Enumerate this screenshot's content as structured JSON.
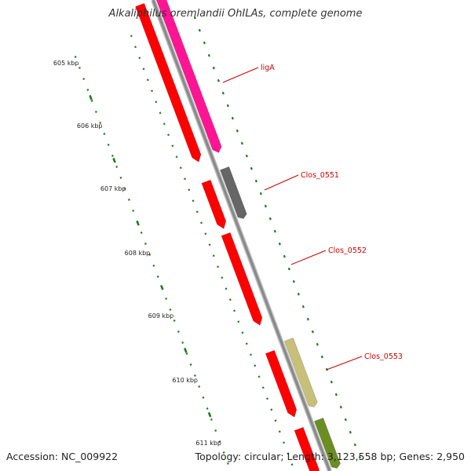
{
  "title": "Alkaliphilus oremlandii OhILAs, complete genome",
  "accession": "Accession: NC_009922",
  "summary": "Topology: circular; Length: 3,123,558 bp; Genes: 2,950",
  "colors": {
    "backbone": "#888888",
    "cds": "#ff0000",
    "pink": "#ff1493",
    "grey": "#666666",
    "khaki": "#c8c07a",
    "olive": "#6b8e23",
    "ticks": "#1a7a1a",
    "label": "#cc0000"
  },
  "kbp_labels": [
    "605 kbp",
    "606 kbp",
    "607 kbp",
    "608 kbp",
    "609 kbp",
    "610 kbp",
    "611 kbp"
  ],
  "genes": [
    {
      "name": "ligA",
      "color": "pink"
    },
    {
      "name": "Clos_0551",
      "color": "grey"
    },
    {
      "name": "Clos_0552",
      "color": "cds"
    },
    {
      "name": "Clos_0553",
      "color": "khaki"
    }
  ]
}
